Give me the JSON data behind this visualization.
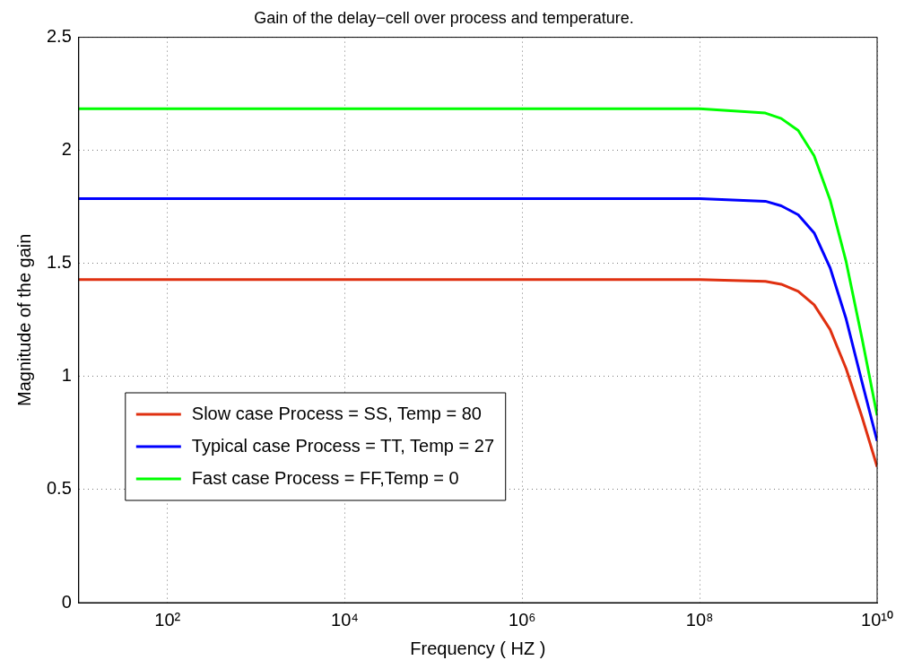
{
  "chart_data": {
    "type": "line",
    "title": "Gain of the delay−cell over process and temperature.",
    "xlabel": "Frequency ( HZ )",
    "ylabel": "Magnitude of the gain",
    "log": "x",
    "xlim": [
      10,
      10000000000
    ],
    "xticks": [
      {
        "value": 100,
        "label": "10²"
      },
      {
        "value": 10000,
        "label": "10⁴"
      },
      {
        "value": 1000000,
        "label": "10⁶"
      },
      {
        "value": 100000000,
        "label": "10⁸"
      },
      {
        "value": 10000000000,
        "label": "10¹⁰"
      }
    ],
    "ylim": [
      0,
      2.5
    ],
    "yticks": [
      0,
      0.5,
      1,
      1.5,
      2,
      2.5
    ],
    "grid": true,
    "legend": "bottom left",
    "marker": "none",
    "line_style": "solid",
    "x": [
      10,
      100000000,
      550000000,
      830000000,
      1290000000,
      1950000000,
      2950000000,
      4470000000,
      6760000000,
      10000000000
    ],
    "series": [
      {
        "name": "Slow case Process = SS, Temp = 80",
        "color": "#e03010",
        "values": [
          1.429,
          1.429,
          1.421,
          1.408,
          1.377,
          1.317,
          1.208,
          1.035,
          0.821,
          0.601
        ]
      },
      {
        "name": "Typical case Process = TT, Temp = 27",
        "color": "#0000ff",
        "values": [
          1.787,
          1.787,
          1.775,
          1.755,
          1.715,
          1.635,
          1.481,
          1.255,
          0.975,
          0.715
        ]
      },
      {
        "name": "Fast case Process = FF,Temp = 0",
        "color": "#00ff00",
        "values": [
          2.184,
          2.184,
          2.165,
          2.141,
          2.088,
          1.976,
          1.781,
          1.508,
          1.168,
          0.828
        ]
      }
    ]
  }
}
